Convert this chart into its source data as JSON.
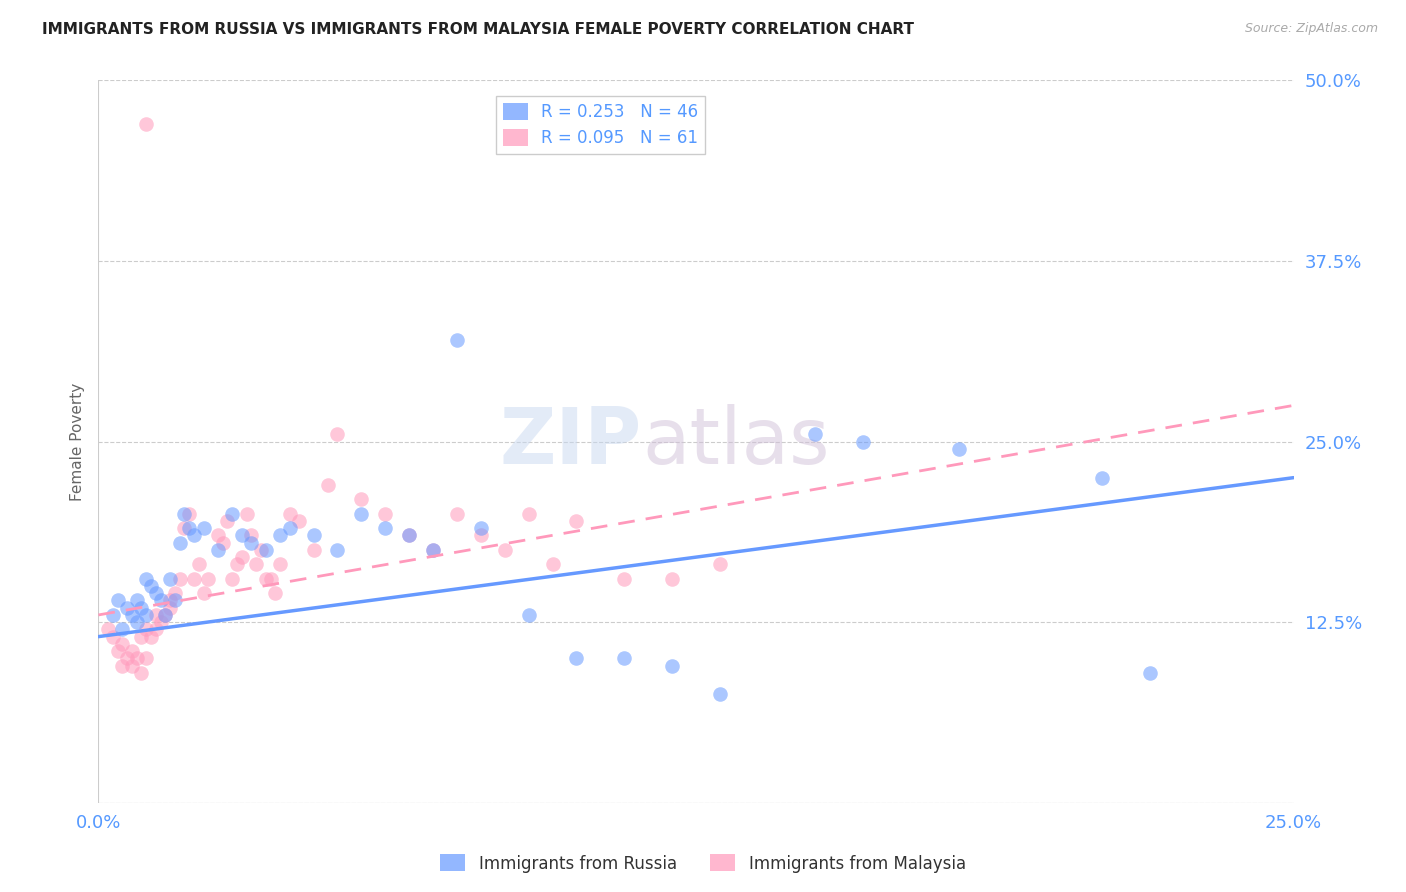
{
  "title": "IMMIGRANTS FROM RUSSIA VS IMMIGRANTS FROM MALAYSIA FEMALE POVERTY CORRELATION CHART",
  "source": "Source: ZipAtlas.com",
  "ylabel": "Female Poverty",
  "xlabel_russia": "Immigrants from Russia",
  "xlabel_malaysia": "Immigrants from Malaysia",
  "xlim": [
    0.0,
    0.25
  ],
  "ylim": [
    0.0,
    0.5
  ],
  "ytick_vals": [
    0.0,
    0.125,
    0.25,
    0.375,
    0.5
  ],
  "ytick_labels": [
    "",
    "12.5%",
    "25.0%",
    "37.5%",
    "50.0%"
  ],
  "xtick_vals": [
    0.0,
    0.25
  ],
  "xtick_labels": [
    "0.0%",
    "25.0%"
  ],
  "grid_color": "#cccccc",
  "russia_color": "#6699ff",
  "malaysia_color": "#ff99bb",
  "russia_R": 0.253,
  "russia_N": 46,
  "malaysia_R": 0.095,
  "malaysia_N": 61,
  "russia_line_x0": 0.0,
  "russia_line_y0": 0.115,
  "russia_line_x1": 0.25,
  "russia_line_y1": 0.225,
  "malaysia_line_x0": 0.0,
  "malaysia_line_y0": 0.13,
  "malaysia_line_x1": 0.25,
  "malaysia_line_y1": 0.275,
  "russia_scatter_x": [
    0.003,
    0.004,
    0.005,
    0.006,
    0.007,
    0.008,
    0.008,
    0.009,
    0.01,
    0.01,
    0.011,
    0.012,
    0.013,
    0.014,
    0.015,
    0.016,
    0.017,
    0.018,
    0.019,
    0.02,
    0.022,
    0.025,
    0.028,
    0.03,
    0.032,
    0.035,
    0.038,
    0.04,
    0.045,
    0.05,
    0.055,
    0.06,
    0.065,
    0.07,
    0.075,
    0.08,
    0.09,
    0.1,
    0.11,
    0.12,
    0.13,
    0.15,
    0.16,
    0.18,
    0.21,
    0.22
  ],
  "russia_scatter_y": [
    0.13,
    0.14,
    0.12,
    0.135,
    0.13,
    0.125,
    0.14,
    0.135,
    0.155,
    0.13,
    0.15,
    0.145,
    0.14,
    0.13,
    0.155,
    0.14,
    0.18,
    0.2,
    0.19,
    0.185,
    0.19,
    0.175,
    0.2,
    0.185,
    0.18,
    0.175,
    0.185,
    0.19,
    0.185,
    0.175,
    0.2,
    0.19,
    0.185,
    0.175,
    0.32,
    0.19,
    0.13,
    0.1,
    0.1,
    0.095,
    0.075,
    0.255,
    0.25,
    0.245,
    0.225,
    0.09
  ],
  "malaysia_scatter_x": [
    0.002,
    0.003,
    0.004,
    0.005,
    0.005,
    0.006,
    0.007,
    0.007,
    0.008,
    0.009,
    0.009,
    0.01,
    0.01,
    0.011,
    0.012,
    0.012,
    0.013,
    0.014,
    0.015,
    0.015,
    0.016,
    0.017,
    0.018,
    0.019,
    0.02,
    0.021,
    0.022,
    0.023,
    0.025,
    0.026,
    0.027,
    0.028,
    0.029,
    0.03,
    0.031,
    0.032,
    0.033,
    0.034,
    0.035,
    0.036,
    0.037,
    0.038,
    0.04,
    0.042,
    0.045,
    0.048,
    0.05,
    0.055,
    0.06,
    0.065,
    0.07,
    0.075,
    0.08,
    0.085,
    0.09,
    0.095,
    0.1,
    0.11,
    0.12,
    0.13,
    0.01
  ],
  "malaysia_scatter_y": [
    0.12,
    0.115,
    0.105,
    0.095,
    0.11,
    0.1,
    0.105,
    0.095,
    0.1,
    0.115,
    0.09,
    0.12,
    0.1,
    0.115,
    0.13,
    0.12,
    0.125,
    0.13,
    0.135,
    0.14,
    0.145,
    0.155,
    0.19,
    0.2,
    0.155,
    0.165,
    0.145,
    0.155,
    0.185,
    0.18,
    0.195,
    0.155,
    0.165,
    0.17,
    0.2,
    0.185,
    0.165,
    0.175,
    0.155,
    0.155,
    0.145,
    0.165,
    0.2,
    0.195,
    0.175,
    0.22,
    0.255,
    0.21,
    0.2,
    0.185,
    0.175,
    0.2,
    0.185,
    0.175,
    0.2,
    0.165,
    0.195,
    0.155,
    0.155,
    0.165,
    0.47
  ],
  "watermark_part1": "ZIP",
  "watermark_part2": "atlas",
  "background_color": "#ffffff",
  "axis_label_color": "#5599ff",
  "ylabel_color": "#666666"
}
